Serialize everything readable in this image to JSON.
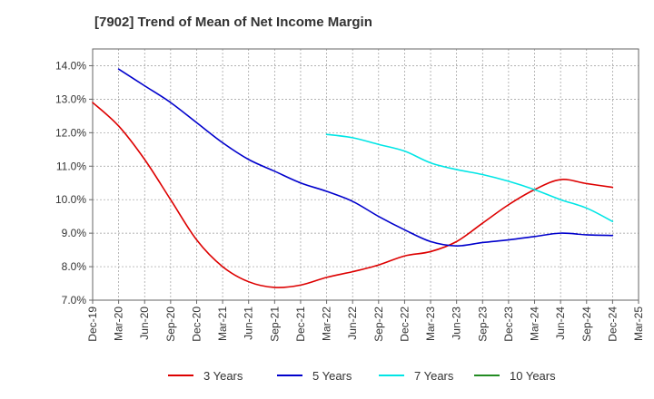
{
  "chart_data": {
    "type": "line",
    "title": "[7902]  Trend of Mean of Net Income Margin",
    "xlabel": "",
    "ylabel": "",
    "ylim": [
      7.0,
      14.5
    ],
    "y_ticks": [
      7.0,
      8.0,
      9.0,
      10.0,
      11.0,
      12.0,
      13.0,
      14.0
    ],
    "y_tick_labels": [
      "7.0%",
      "8.0%",
      "9.0%",
      "10.0%",
      "11.0%",
      "12.0%",
      "13.0%",
      "14.0%"
    ],
    "x_ticks": [
      "Dec-19",
      "Mar-20",
      "Jun-20",
      "Sep-20",
      "Dec-20",
      "Mar-21",
      "Jun-21",
      "Sep-21",
      "Dec-21",
      "Mar-22",
      "Jun-22",
      "Sep-22",
      "Dec-22",
      "Mar-23",
      "Jun-23",
      "Sep-23",
      "Dec-23",
      "Mar-24",
      "Jun-24",
      "Sep-24",
      "Dec-24",
      "Mar-25"
    ],
    "grid": true,
    "legend_position": "bottom",
    "series": [
      {
        "name": "3 Years",
        "color": "#dd0000",
        "points": [
          [
            "Dec-19",
            12.9
          ],
          [
            "Mar-20",
            12.2
          ],
          [
            "Jun-20",
            11.2
          ],
          [
            "Sep-20",
            10.0
          ],
          [
            "Dec-20",
            8.8
          ],
          [
            "Mar-21",
            8.0
          ],
          [
            "Jun-21",
            7.55
          ],
          [
            "Sep-21",
            7.38
          ],
          [
            "Dec-21",
            7.45
          ],
          [
            "Mar-22",
            7.68
          ],
          [
            "Jun-22",
            7.85
          ],
          [
            "Sep-22",
            8.05
          ],
          [
            "Dec-22",
            8.32
          ],
          [
            "Mar-23",
            8.45
          ],
          [
            "Jun-23",
            8.75
          ],
          [
            "Sep-23",
            9.3
          ],
          [
            "Dec-23",
            9.85
          ],
          [
            "Mar-24",
            10.3
          ],
          [
            "Jun-24",
            10.6
          ],
          [
            "Sep-24",
            10.48
          ],
          [
            "Dec-24",
            10.37
          ]
        ]
      },
      {
        "name": "5 Years",
        "color": "#0000cc",
        "points": [
          [
            "Mar-20",
            13.9
          ],
          [
            "Jun-20",
            13.4
          ],
          [
            "Sep-20",
            12.9
          ],
          [
            "Dec-20",
            12.3
          ],
          [
            "Mar-21",
            11.7
          ],
          [
            "Jun-21",
            11.2
          ],
          [
            "Sep-21",
            10.85
          ],
          [
            "Dec-21",
            10.5
          ],
          [
            "Mar-22",
            10.25
          ],
          [
            "Jun-22",
            9.95
          ],
          [
            "Sep-22",
            9.5
          ],
          [
            "Dec-22",
            9.1
          ],
          [
            "Mar-23",
            8.75
          ],
          [
            "Jun-23",
            8.62
          ],
          [
            "Sep-23",
            8.72
          ],
          [
            "Dec-23",
            8.8
          ],
          [
            "Mar-24",
            8.9
          ],
          [
            "Jun-24",
            9.0
          ],
          [
            "Sep-24",
            8.95
          ],
          [
            "Dec-24",
            8.93
          ]
        ]
      },
      {
        "name": "7 Years",
        "color": "#00e5e5",
        "points": [
          [
            "Mar-22",
            11.95
          ],
          [
            "Jun-22",
            11.85
          ],
          [
            "Sep-22",
            11.65
          ],
          [
            "Dec-22",
            11.45
          ],
          [
            "Mar-23",
            11.1
          ],
          [
            "Jun-23",
            10.9
          ],
          [
            "Sep-23",
            10.75
          ],
          [
            "Dec-23",
            10.55
          ],
          [
            "Mar-24",
            10.3
          ],
          [
            "Jun-24",
            10.0
          ],
          [
            "Sep-24",
            9.75
          ],
          [
            "Dec-24",
            9.35
          ]
        ]
      },
      {
        "name": "10 Years",
        "color": "#228b22",
        "points": []
      }
    ]
  }
}
